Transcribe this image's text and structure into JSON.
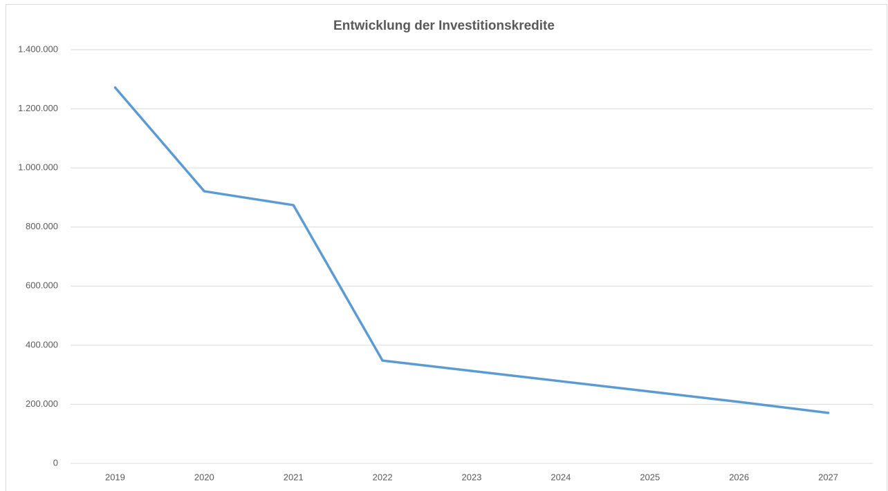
{
  "chart_data": {
    "type": "line",
    "title": "Entwicklung der Investitionskredite",
    "categories": [
      "2019",
      "2020",
      "2021",
      "2022",
      "2023",
      "2024",
      "2025",
      "2026",
      "2027"
    ],
    "values": [
      1272000,
      921000,
      874000,
      348000,
      313000,
      278000,
      243000,
      208000,
      171000
    ],
    "color": "#5b9bd5",
    "ylim": [
      0,
      1400000
    ],
    "yticks": [
      0,
      {
        "value": 200000,
        "label": "200.000"
      },
      {
        "value": 400000,
        "label": "400.000"
      },
      {
        "value": 600000,
        "label": "600.000"
      },
      {
        "value": 800000,
        "label": "800.000"
      },
      {
        "value": 1000000,
        "label": "1.000.000"
      },
      {
        "value": 1200000,
        "label": "1.200.000"
      },
      {
        "value": 1400000,
        "label": "1.400.000"
      }
    ],
    "grid": true
  }
}
